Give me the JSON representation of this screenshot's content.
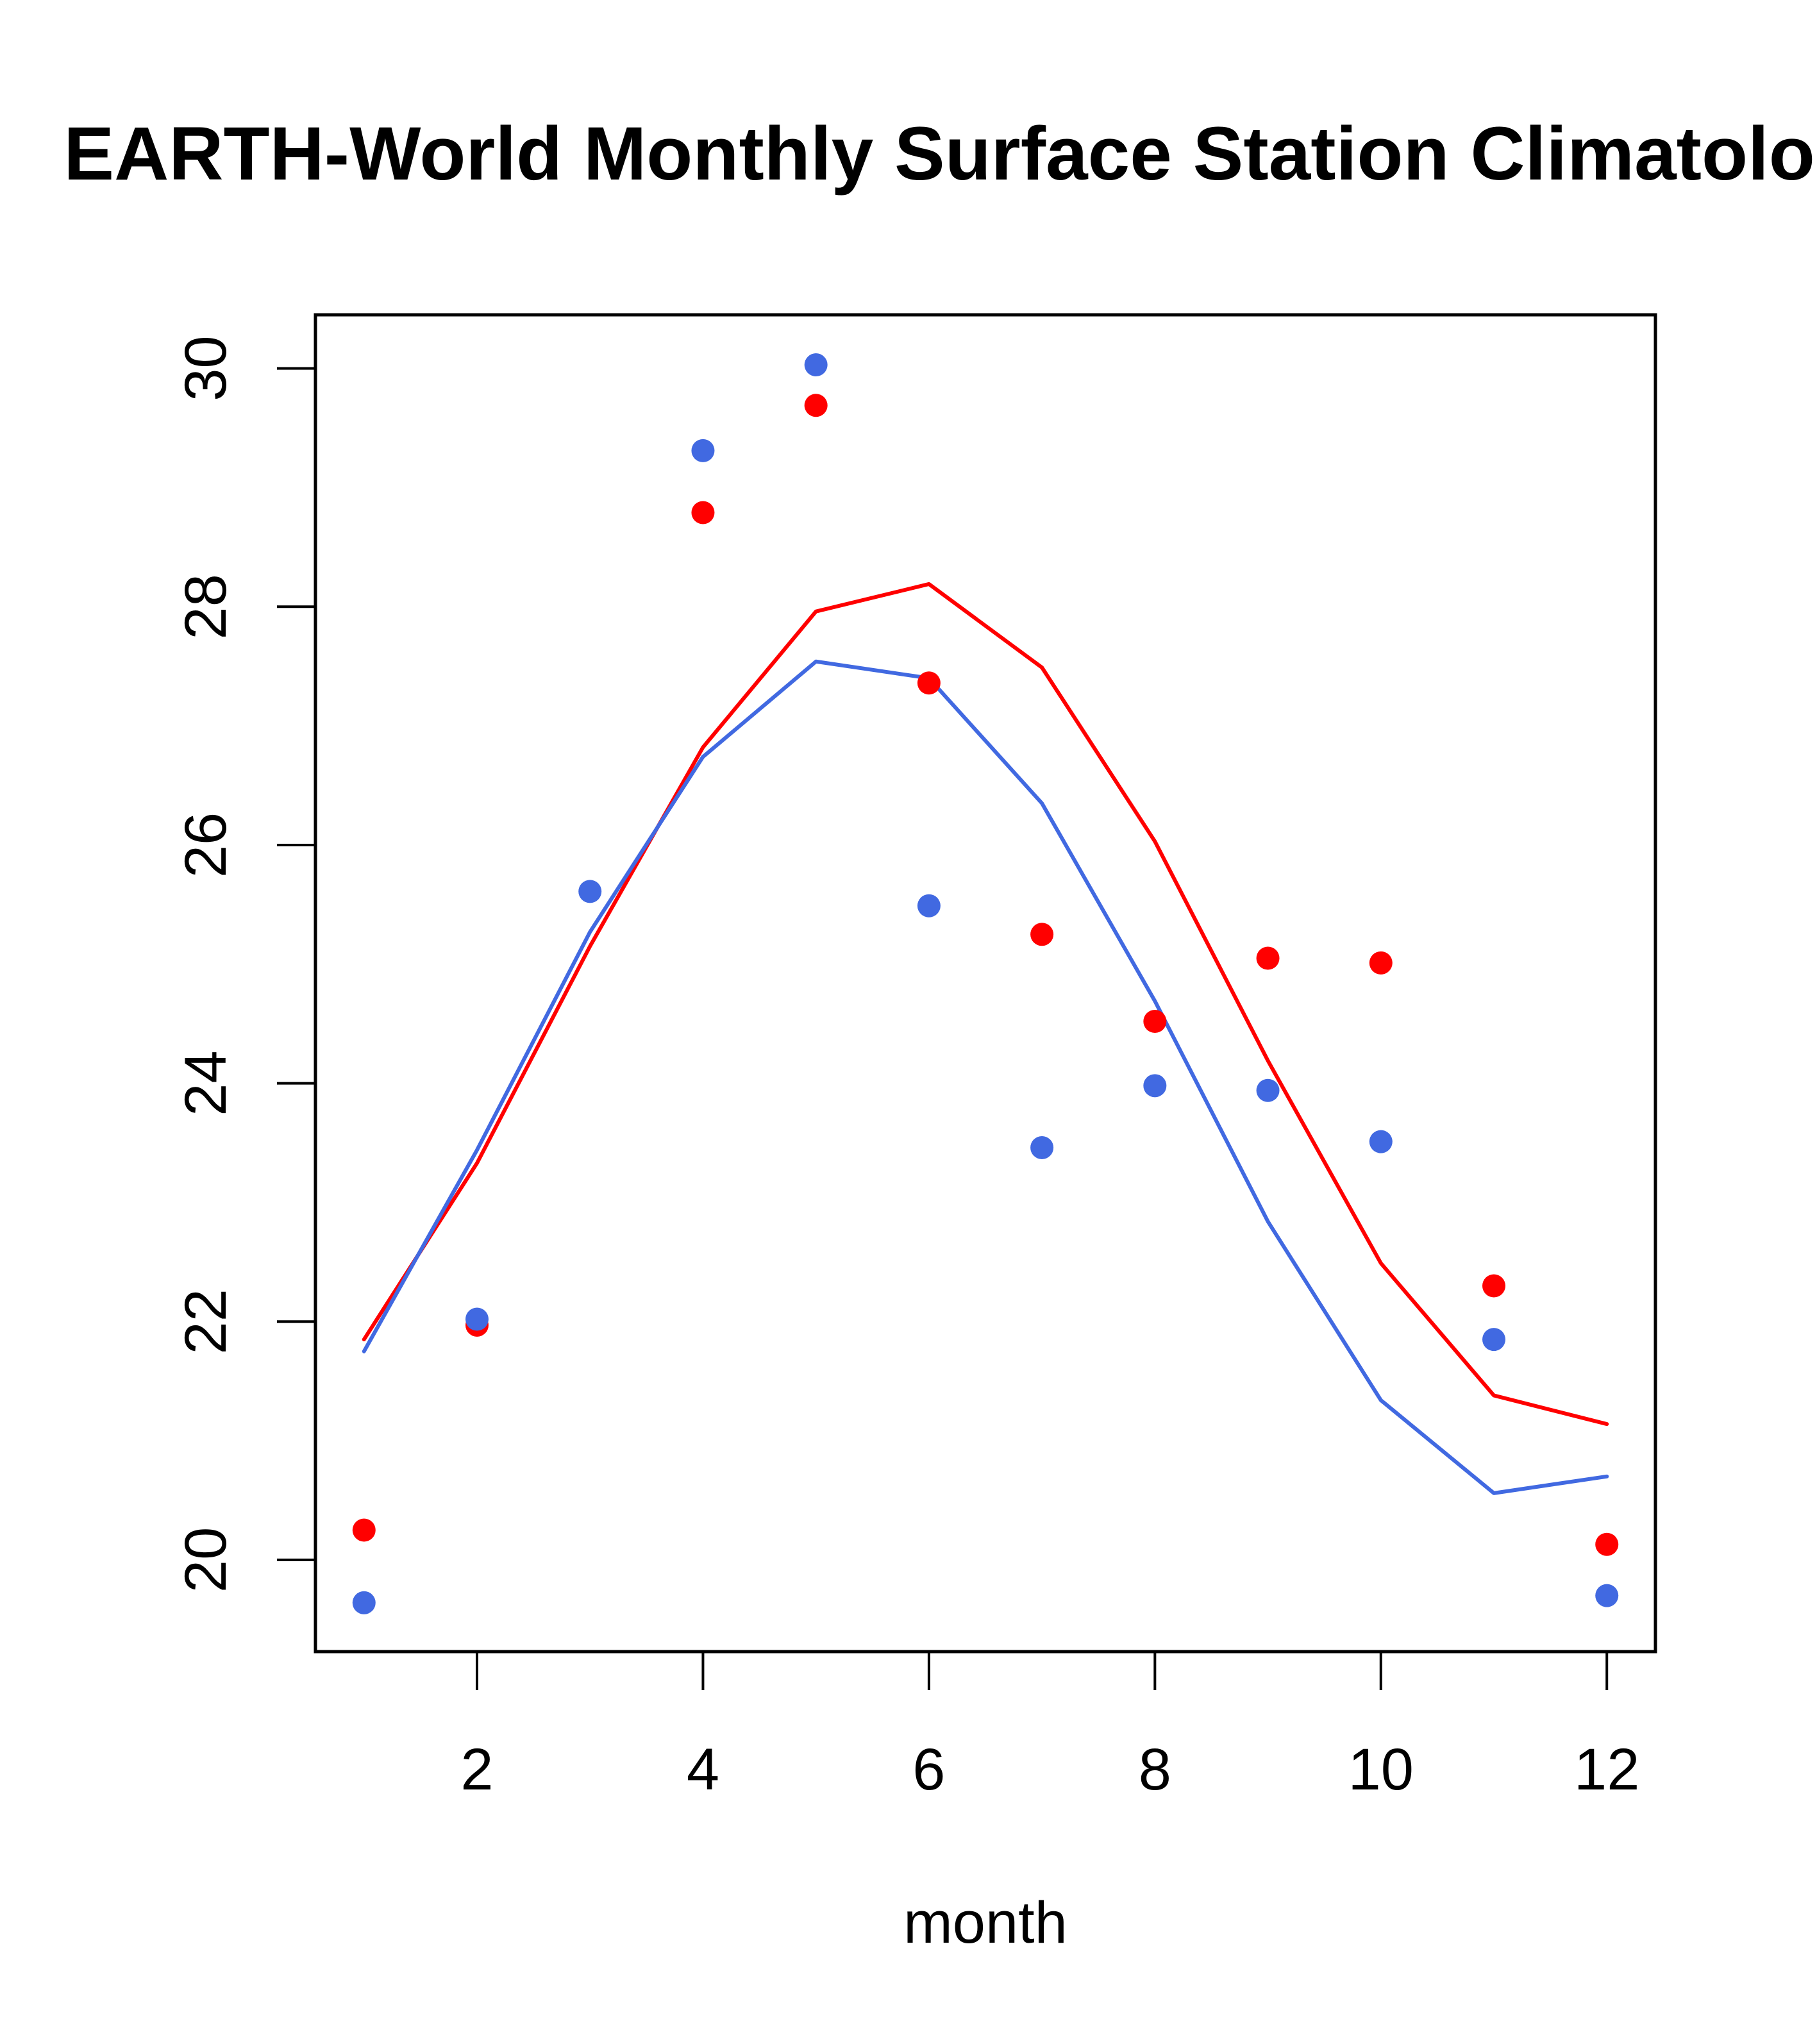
{
  "chart_data": {
    "type": "line",
    "title": "EARTH-World Monthly Surface Station Climatology",
    "xlabel": "month",
    "ylabel": "",
    "xlim": [
      0.57,
      12.43
    ],
    "ylim": [
      19.23,
      30.45
    ],
    "x_ticks": [
      2,
      4,
      6,
      8,
      10,
      12
    ],
    "y_ticks": [
      20,
      22,
      24,
      26,
      28,
      30
    ],
    "x_tick_labels": [
      "2",
      "4",
      "6",
      "8",
      "10",
      "12"
    ],
    "y_tick_labels": [
      "20",
      "22",
      "24",
      "26",
      "28",
      "30"
    ],
    "grid": false,
    "legend": "none",
    "x": [
      1,
      2,
      3,
      4,
      5,
      6,
      7,
      8,
      9,
      10,
      11,
      12
    ],
    "series": [
      {
        "name": "red-points",
        "kind": "scatter",
        "color": "#ff0000",
        "x": [
          1,
          2,
          4,
          5,
          6,
          7,
          8,
          9,
          10,
          11,
          12
        ],
        "values": [
          20.25,
          21.97,
          28.79,
          29.69,
          27.36,
          25.25,
          24.52,
          25.05,
          25.01,
          22.3,
          20.13
        ]
      },
      {
        "name": "blue-points",
        "kind": "scatter",
        "color": "#4169e1",
        "x": [
          1,
          2,
          3,
          4,
          5,
          6,
          7,
          8,
          9,
          10,
          11,
          12
        ],
        "values": [
          19.64,
          22.02,
          25.61,
          29.31,
          30.03,
          25.49,
          23.46,
          23.98,
          23.94,
          23.51,
          21.85,
          19.7
        ]
      },
      {
        "name": "red-line",
        "kind": "line",
        "color": "#ff0000",
        "x": [
          1,
          2,
          3,
          4,
          5,
          6,
          7,
          8,
          9,
          10,
          11,
          12
        ],
        "values": [
          21.85,
          23.33,
          25.15,
          26.82,
          27.96,
          28.19,
          27.49,
          26.03,
          24.19,
          22.49,
          21.38,
          21.14
        ]
      },
      {
        "name": "blue-line",
        "kind": "line",
        "color": "#4169e1",
        "x": [
          1,
          2,
          3,
          4,
          5,
          6,
          7,
          8,
          9,
          10,
          11,
          12
        ],
        "values": [
          21.75,
          23.44,
          25.27,
          26.74,
          27.54,
          27.4,
          26.35,
          24.69,
          22.84,
          21.34,
          20.56,
          20.7
        ]
      }
    ]
  }
}
